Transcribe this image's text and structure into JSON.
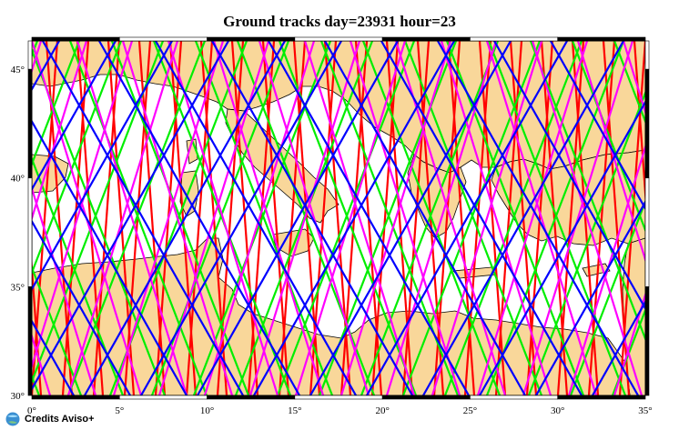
{
  "title": "Ground tracks day=23931 hour=23",
  "credit": "Credits Aviso+",
  "map": {
    "projection": "equirectangular",
    "lon_range": [
      0,
      35
    ],
    "lat_range": [
      30,
      46.3
    ],
    "x_ticks": [
      "0°",
      "5°",
      "10°",
      "15°",
      "20°",
      "25°",
      "30°",
      "35°"
    ],
    "y_ticks": [
      "30°",
      "35°",
      "40°",
      "45°"
    ],
    "land_color": "#f9d79a",
    "sea_color": "#ffffff",
    "coast_color": "#000000"
  },
  "tracks": [
    {
      "color": "#ff0000"
    },
    {
      "color": "#00ee00"
    },
    {
      "color": "#ff00ff"
    },
    {
      "color": "#0000ff"
    }
  ]
}
